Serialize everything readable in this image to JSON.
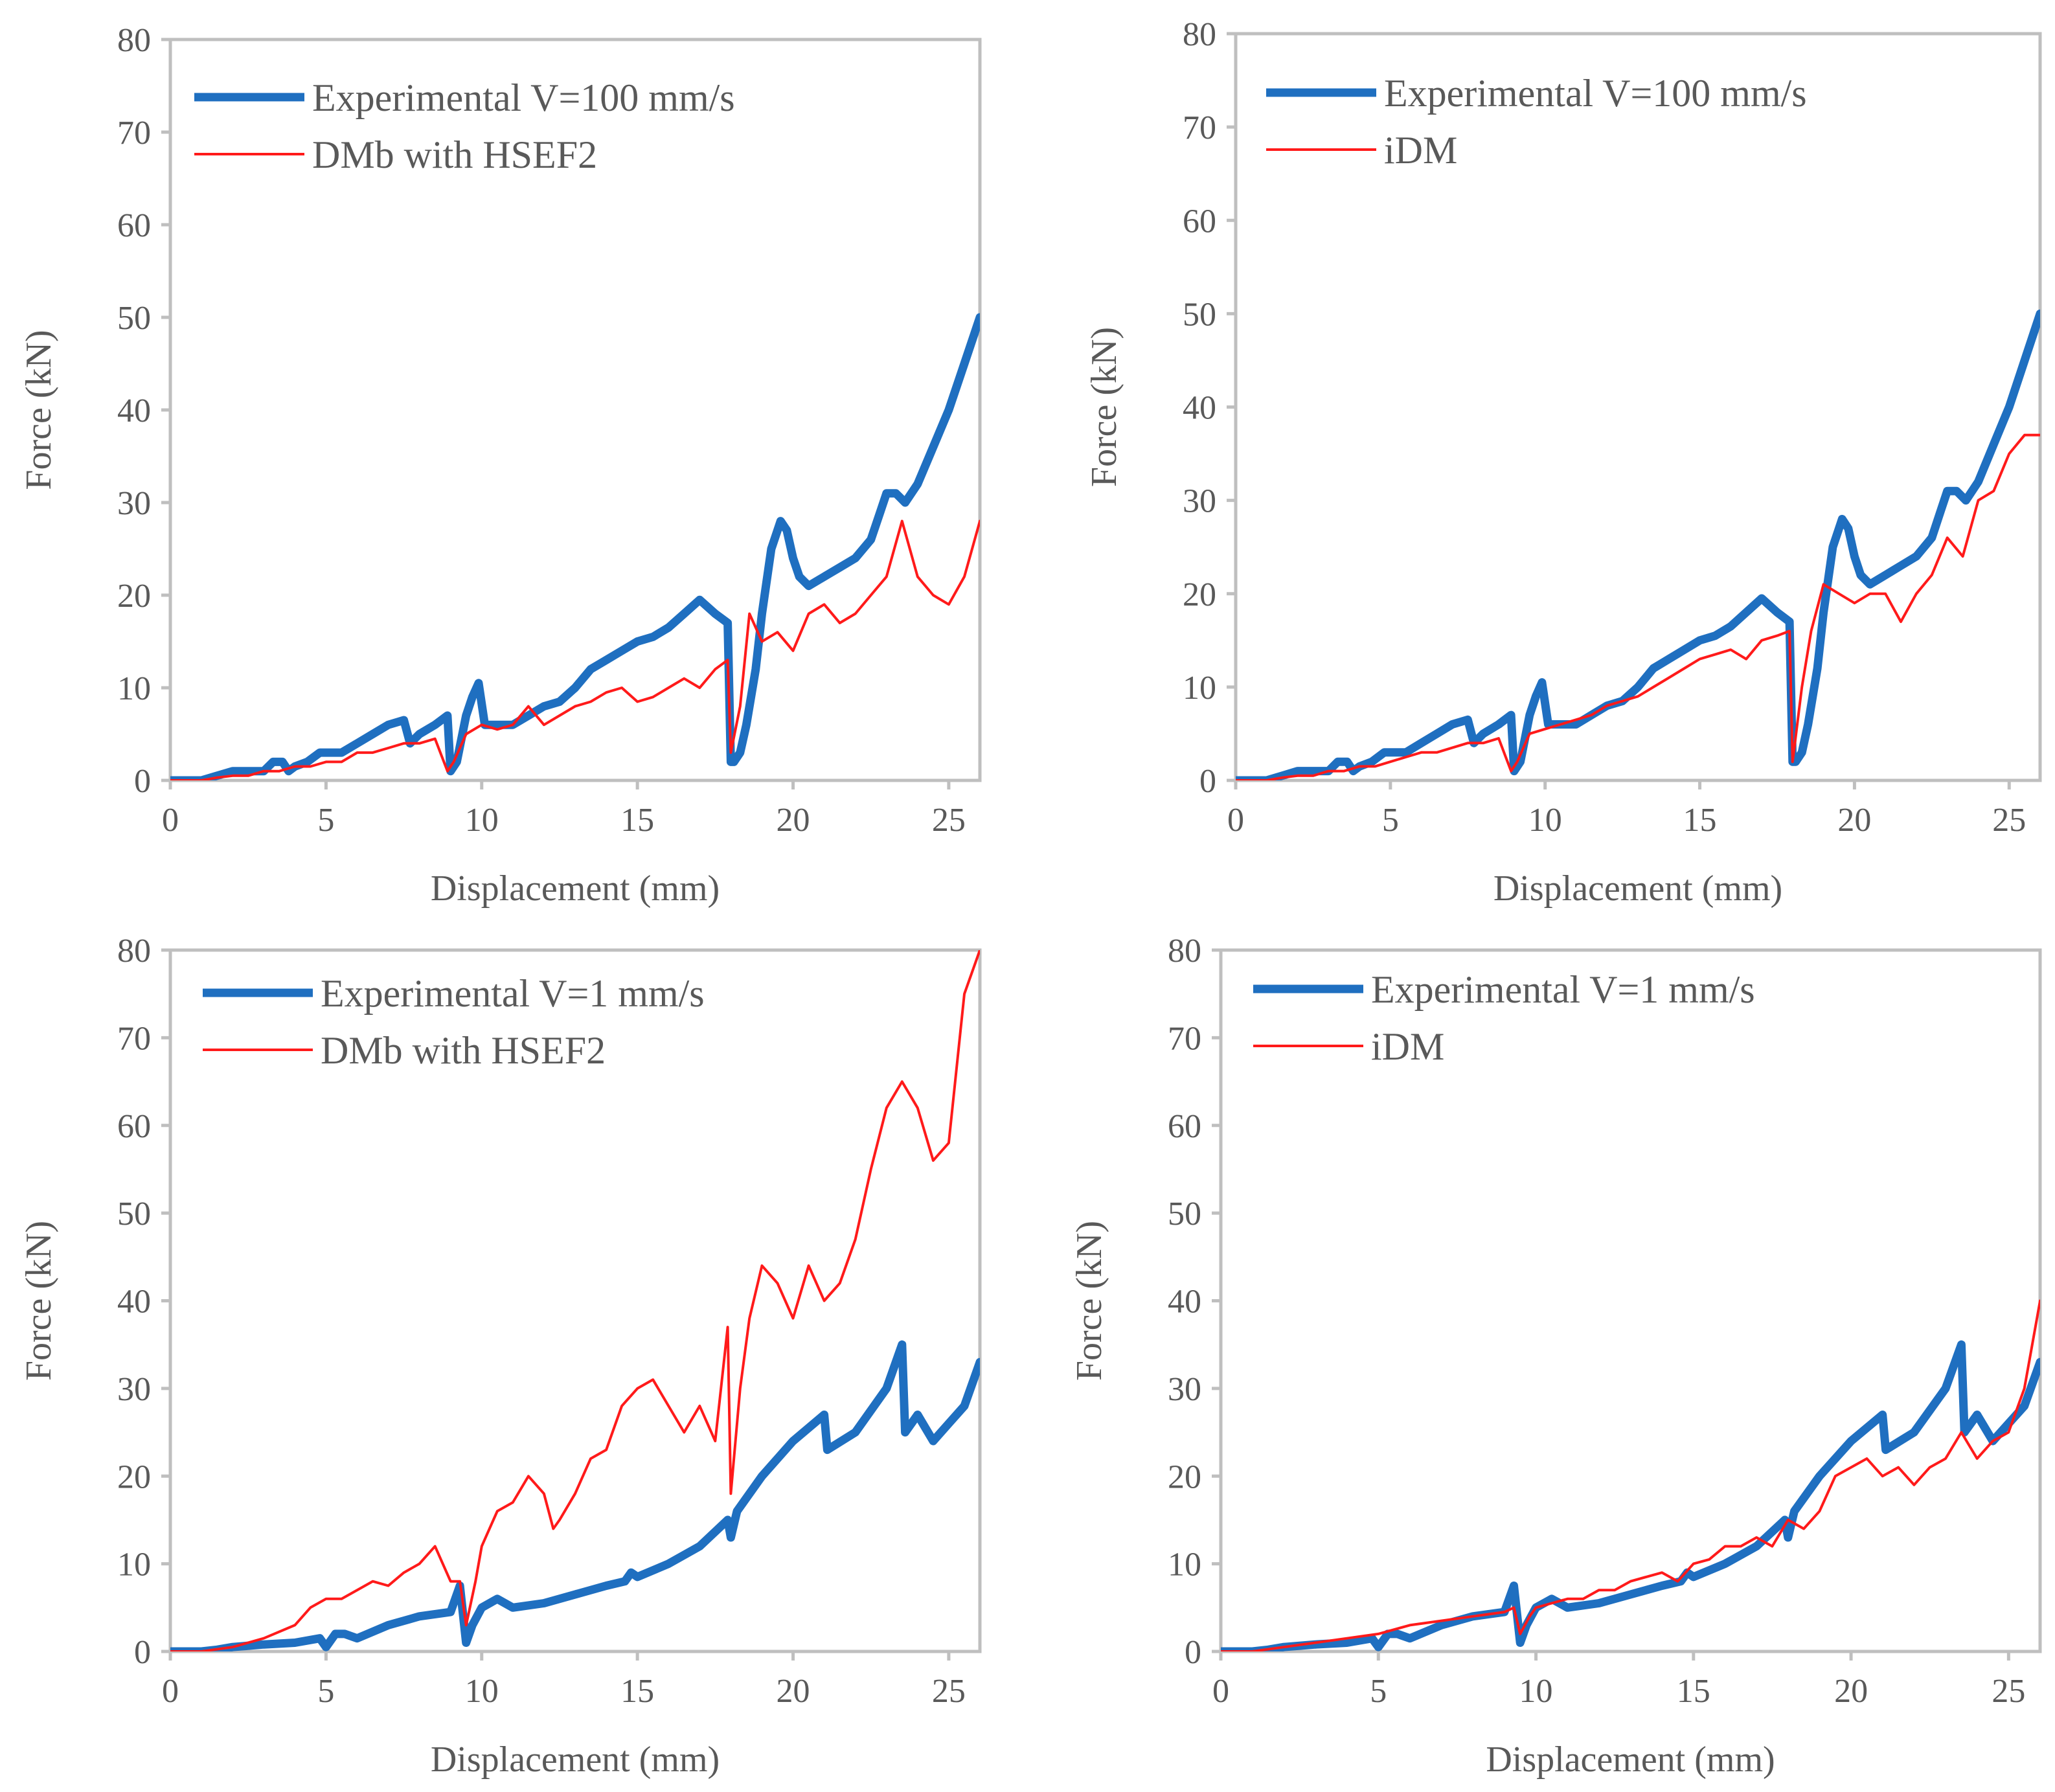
{
  "colors": {
    "experimental": "#1f6fc0",
    "simulation": "#ff1a1a",
    "text": "#595959",
    "frame": "#bfbfbf"
  },
  "chart_data": [
    {
      "type": "line",
      "panel": "top-left",
      "title": "",
      "xlabel": "Displacement (mm)",
      "ylabel": "Force (kN)",
      "xlim": [
        0,
        26
      ],
      "ylim": [
        0,
        80
      ],
      "xticks": [
        "0",
        "5",
        "10",
        "15",
        "20",
        "25"
      ],
      "yticks": [
        "0",
        "10",
        "20",
        "30",
        "40",
        "50",
        "60",
        "70",
        "80"
      ],
      "legend_position": "top-left",
      "series": [
        {
          "name": "Experimental V=100 mm/s",
          "style": "experimental",
          "x": [
            0,
            0.5,
            1,
            1.5,
            2,
            2.5,
            3,
            3.3,
            3.6,
            3.8,
            4,
            4.4,
            4.8,
            5,
            5.5,
            6,
            6.5,
            7,
            7.5,
            7.7,
            8,
            8.5,
            8.9,
            9,
            9.2,
            9.5,
            9.7,
            9.9,
            10.1,
            10.3,
            10.5,
            11,
            11.5,
            12,
            12.5,
            13,
            13.5,
            14,
            14.5,
            15,
            15.5,
            16,
            16.5,
            17,
            17.5,
            17.9,
            18,
            18.1,
            18.3,
            18.5,
            18.8,
            19,
            19.3,
            19.6,
            19.8,
            20,
            20.2,
            20.5,
            21,
            21.5,
            22,
            22.5,
            22.8,
            23,
            23.3,
            23.6,
            24,
            24.5,
            25,
            25.5,
            26
          ],
          "values": [
            0,
            0,
            0,
            0.5,
            1,
            1,
            1,
            2,
            2,
            1,
            1.5,
            2,
            3,
            3,
            3,
            4,
            5,
            6,
            6.5,
            4,
            5,
            6,
            7,
            1,
            2,
            7,
            9,
            10.5,
            6,
            6,
            6,
            6,
            7,
            8,
            8.5,
            10,
            12,
            13,
            14,
            15,
            15.5,
            16.5,
            18,
            19.5,
            18,
            17,
            2,
            2,
            3,
            6,
            12,
            18,
            25,
            28,
            27,
            24,
            22,
            21,
            22,
            23,
            24,
            26,
            29,
            31,
            31,
            30,
            32,
            36,
            40,
            45,
            50
          ]
        },
        {
          "name": "DMb with HSEF2",
          "style": "simulation",
          "x": [
            0,
            0.5,
            1,
            1.5,
            2,
            2.5,
            3,
            3.5,
            4,
            4.5,
            5,
            5.5,
            6,
            6.5,
            7,
            7.5,
            8,
            8.5,
            8.9,
            9.1,
            9.5,
            10,
            10.5,
            11,
            11.5,
            12,
            12.5,
            13,
            13.5,
            14,
            14.5,
            15,
            15.5,
            16,
            16.5,
            17,
            17.5,
            17.9,
            18,
            18.3,
            18.6,
            19,
            19.5,
            20,
            20.5,
            21,
            21.5,
            22,
            22.5,
            23,
            23.5,
            24,
            24.5,
            25,
            25.5,
            26
          ],
          "values": [
            0,
            0,
            0,
            0.3,
            0.5,
            0.5,
            1,
            1,
            1.5,
            1.5,
            2,
            2,
            3,
            3,
            3.5,
            4,
            4,
            4.5,
            1,
            2,
            5,
            6,
            5.5,
            6,
            8,
            6,
            7,
            8,
            8.5,
            9.5,
            10,
            8.5,
            9,
            10,
            11,
            10,
            12,
            13,
            3,
            8,
            18,
            15,
            16,
            14,
            18,
            19,
            17,
            18,
            20,
            22,
            28,
            22,
            20,
            19,
            22,
            28
          ]
        }
      ]
    },
    {
      "type": "line",
      "panel": "top-right",
      "title": "",
      "xlabel": "Displacement (mm)",
      "ylabel": "Force (kN)",
      "xlim": [
        0,
        26
      ],
      "ylim": [
        0,
        80
      ],
      "xticks": [
        "0",
        "5",
        "10",
        "15",
        "20",
        "25"
      ],
      "yticks": [
        "0",
        "10",
        "20",
        "30",
        "40",
        "50",
        "60",
        "70",
        "80"
      ],
      "legend_position": "top-left",
      "series": [
        {
          "name": "Experimental V=100 mm/s",
          "style": "experimental",
          "x": [
            0,
            0.5,
            1,
            1.5,
            2,
            2.5,
            3,
            3.3,
            3.6,
            3.8,
            4,
            4.4,
            4.8,
            5,
            5.5,
            6,
            6.5,
            7,
            7.5,
            7.7,
            8,
            8.5,
            8.9,
            9,
            9.2,
            9.5,
            9.7,
            9.9,
            10.1,
            10.3,
            10.5,
            11,
            11.5,
            12,
            12.5,
            13,
            13.5,
            14,
            14.5,
            15,
            15.5,
            16,
            16.5,
            17,
            17.5,
            17.9,
            18,
            18.1,
            18.3,
            18.5,
            18.8,
            19,
            19.3,
            19.6,
            19.8,
            20,
            20.2,
            20.5,
            21,
            21.5,
            22,
            22.5,
            22.8,
            23,
            23.3,
            23.6,
            24,
            24.5,
            25,
            25.5,
            26
          ],
          "values": [
            0,
            0,
            0,
            0.5,
            1,
            1,
            1,
            2,
            2,
            1,
            1.5,
            2,
            3,
            3,
            3,
            4,
            5,
            6,
            6.5,
            4,
            5,
            6,
            7,
            1,
            2,
            7,
            9,
            10.5,
            6,
            6,
            6,
            6,
            7,
            8,
            8.5,
            10,
            12,
            13,
            14,
            15,
            15.5,
            16.5,
            18,
            19.5,
            18,
            17,
            2,
            2,
            3,
            6,
            12,
            18,
            25,
            28,
            27,
            24,
            22,
            21,
            22,
            23,
            24,
            26,
            29,
            31,
            31,
            30,
            32,
            36,
            40,
            45,
            50
          ]
        },
        {
          "name": "iDM",
          "style": "simulation",
          "x": [
            0,
            0.5,
            1,
            1.5,
            2,
            2.5,
            3,
            3.5,
            4,
            4.5,
            5,
            5.5,
            6,
            6.5,
            7,
            7.5,
            8,
            8.5,
            8.9,
            9.1,
            9.5,
            10,
            10.5,
            11,
            11.5,
            12,
            12.5,
            13,
            13.5,
            14,
            14.5,
            15,
            15.5,
            16,
            16.5,
            17,
            17.5,
            17.9,
            18,
            18.3,
            18.6,
            19,
            19.5,
            20,
            20.5,
            21,
            21.5,
            22,
            22.5,
            23,
            23.5,
            24,
            24.5,
            25,
            25.5,
            26
          ],
          "values": [
            0,
            0,
            0,
            0.3,
            0.5,
            0.5,
            1,
            1,
            1.5,
            1.5,
            2,
            2.5,
            3,
            3,
            3.5,
            4,
            4,
            4.5,
            1,
            2,
            5,
            5.5,
            6,
            6.5,
            7,
            8,
            8.5,
            9,
            10,
            11,
            12,
            13,
            13.5,
            14,
            13,
            15,
            15.5,
            16,
            2,
            10,
            16,
            21,
            20,
            19,
            20,
            20,
            17,
            20,
            22,
            26,
            24,
            30,
            31,
            35,
            37,
            37
          ]
        }
      ]
    },
    {
      "type": "line",
      "panel": "bottom-left",
      "title": "",
      "xlabel": "Displacement (mm)",
      "ylabel": "Force (kN)",
      "xlim": [
        0,
        26
      ],
      "ylim": [
        0,
        80
      ],
      "xticks": [
        "0",
        "5",
        "10",
        "15",
        "20",
        "25"
      ],
      "yticks": [
        "0",
        "10",
        "20",
        "30",
        "40",
        "50",
        "60",
        "70",
        "80"
      ],
      "legend_position": "top-left",
      "series": [
        {
          "name": "Experimental V=1 mm/s",
          "style": "experimental",
          "x": [
            0,
            1,
            1.5,
            2,
            3,
            4,
            4.8,
            5,
            5.3,
            5.6,
            6,
            7,
            8,
            9,
            9.3,
            9.5,
            9.7,
            10,
            10.5,
            11,
            12,
            13,
            14,
            14.6,
            14.8,
            15,
            16,
            17,
            17.9,
            18,
            18.2,
            19,
            20,
            21,
            21.1,
            22,
            23,
            23.5,
            23.6,
            24,
            24.5,
            25,
            25.5,
            26
          ],
          "values": [
            0,
            0,
            0.2,
            0.5,
            0.8,
            1,
            1.5,
            0.5,
            2,
            2,
            1.5,
            3,
            4,
            4.5,
            7.5,
            1,
            3,
            5,
            6,
            5,
            5.5,
            6.5,
            7.5,
            8,
            9,
            8.5,
            10,
            12,
            15,
            13,
            16,
            20,
            24,
            27,
            23,
            25,
            30,
            35,
            25,
            27,
            24,
            26,
            28,
            33
          ]
        },
        {
          "name": "DMb with HSEF2",
          "style": "simulation",
          "x": [
            0,
            1,
            2,
            3,
            4,
            4.5,
            5,
            5.5,
            6,
            6.5,
            7,
            7.5,
            8,
            8.5,
            9,
            9.3,
            9.5,
            9.8,
            10,
            10.5,
            11,
            11.5,
            12,
            12.3,
            12.5,
            13,
            13.5,
            14,
            14.5,
            15,
            15.5,
            16,
            16.5,
            17,
            17.5,
            17.9,
            18,
            18.3,
            18.6,
            19,
            19.5,
            20,
            20.5,
            21,
            21.5,
            22,
            22.5,
            23,
            23.5,
            24,
            24.5,
            25,
            25.5,
            26
          ],
          "values": [
            0,
            0,
            0.5,
            1.5,
            3,
            5,
            6,
            6,
            7,
            8,
            7.5,
            9,
            10,
            12,
            8,
            8,
            3,
            8,
            12,
            16,
            17,
            20,
            18,
            14,
            15,
            18,
            22,
            23,
            28,
            30,
            31,
            28,
            25,
            28,
            24,
            37,
            18,
            30,
            38,
            44,
            42,
            38,
            44,
            40,
            42,
            47,
            55,
            62,
            65,
            62,
            56,
            58,
            75,
            80
          ]
        }
      ]
    },
    {
      "type": "line",
      "panel": "bottom-right",
      "title": "",
      "xlabel": "Displacement (mm)",
      "ylabel": "Force (kN)",
      "xlim": [
        0,
        26
      ],
      "ylim": [
        0,
        80
      ],
      "xticks": [
        "0",
        "5",
        "10",
        "15",
        "20",
        "25"
      ],
      "yticks": [
        "0",
        "10",
        "20",
        "30",
        "40",
        "50",
        "60",
        "70",
        "80"
      ],
      "legend_position": "top-left",
      "series": [
        {
          "name": "Experimental V=1 mm/s",
          "style": "experimental",
          "x": [
            0,
            1,
            1.5,
            2,
            3,
            4,
            4.8,
            5,
            5.3,
            5.6,
            6,
            7,
            8,
            9,
            9.3,
            9.5,
            9.7,
            10,
            10.5,
            11,
            12,
            13,
            14,
            14.6,
            14.8,
            15,
            16,
            17,
            17.9,
            18,
            18.2,
            19,
            20,
            21,
            21.1,
            22,
            23,
            23.5,
            23.6,
            24,
            24.5,
            25,
            25.5,
            26
          ],
          "values": [
            0,
            0,
            0.2,
            0.5,
            0.8,
            1,
            1.5,
            0.5,
            2,
            2,
            1.5,
            3,
            4,
            4.5,
            7.5,
            1,
            3,
            5,
            6,
            5,
            5.5,
            6.5,
            7.5,
            8,
            9,
            8.5,
            10,
            12,
            15,
            13,
            16,
            20,
            24,
            27,
            23,
            25,
            30,
            35,
            25,
            27,
            24,
            26,
            28,
            33
          ]
        },
        {
          "name": "iDM",
          "style": "simulation",
          "x": [
            0,
            1,
            2,
            3,
            4,
            5,
            6,
            7,
            8,
            9,
            9.3,
            9.5,
            9.8,
            10,
            10.5,
            11,
            11.5,
            12,
            12.5,
            13,
            13.5,
            14,
            14.5,
            15,
            15.5,
            16,
            16.5,
            17,
            17.5,
            18,
            18.5,
            19,
            19.5,
            20,
            20.5,
            21,
            21.5,
            22,
            22.5,
            23,
            23.5,
            24,
            24.5,
            25,
            25.5,
            26
          ],
          "values": [
            0,
            0,
            0.5,
            1,
            1.5,
            2,
            3,
            3.5,
            4,
            4.5,
            5,
            2,
            4,
            5,
            5.5,
            6,
            6,
            7,
            7,
            8,
            8.5,
            9,
            8,
            10,
            10.5,
            12,
            12,
            13,
            12,
            15,
            14,
            16,
            20,
            21,
            22,
            20,
            21,
            19,
            21,
            22,
            25,
            22,
            24,
            25,
            30,
            40
          ]
        }
      ]
    }
  ]
}
